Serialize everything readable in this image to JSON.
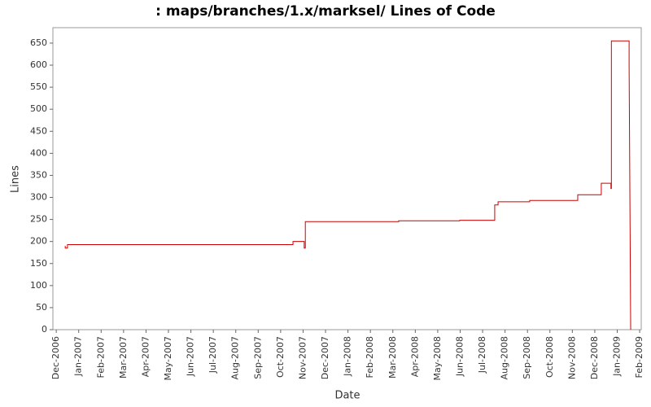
{
  "chart_data": {
    "type": "line",
    "title": ": maps/branches/1.x/marksel/ Lines of Code",
    "x_label": "Date",
    "y_label": "Lines",
    "x": [
      0.4,
      0.4,
      0.5,
      0.5,
      10.55,
      10.55,
      11.05,
      11.05,
      11.1,
      11.1,
      15.26,
      15.26,
      17.98,
      17.98,
      19.54,
      19.54,
      19.69,
      19.69,
      21.1,
      21.1,
      23.24,
      23.24,
      24.29,
      24.29,
      24.72,
      24.72,
      24.74,
      24.74,
      25.53,
      25.53,
      25.6
    ],
    "series": [
      {
        "name": "Lines",
        "color": "#cc0000",
        "values": [
          190,
          185,
          185,
          193,
          193,
          200,
          200,
          185,
          185,
          245,
          245,
          247,
          247,
          248,
          248,
          283,
          283,
          290,
          290,
          293,
          293,
          306,
          306,
          332,
          332,
          320,
          320,
          655,
          655,
          598,
          0
        ]
      }
    ],
    "xlim": [
      -0.15,
      26.07
    ],
    "xticks": [
      {
        "value": 0,
        "label": "Dec-2006"
      },
      {
        "value": 1,
        "label": "Jan-2007"
      },
      {
        "value": 2,
        "label": "Feb-2007"
      },
      {
        "value": 3,
        "label": "Mar-2007"
      },
      {
        "value": 4,
        "label": "Apr-2007"
      },
      {
        "value": 5,
        "label": "May-2007"
      },
      {
        "value": 6,
        "label": "Jun-2007"
      },
      {
        "value": 7,
        "label": "Jul-2007"
      },
      {
        "value": 8,
        "label": "Aug-2007"
      },
      {
        "value": 9,
        "label": "Sep-2007"
      },
      {
        "value": 10,
        "label": "Oct-2007"
      },
      {
        "value": 11,
        "label": "Nov-2007"
      },
      {
        "value": 12,
        "label": "Dec-2007"
      },
      {
        "value": 13,
        "label": "Jan-2008"
      },
      {
        "value": 14,
        "label": "Feb-2008"
      },
      {
        "value": 15,
        "label": "Mar-2008"
      },
      {
        "value": 16,
        "label": "Apr-2008"
      },
      {
        "value": 17,
        "label": "May-2008"
      },
      {
        "value": 18,
        "label": "Jun-2008"
      },
      {
        "value": 19,
        "label": "Jul-2008"
      },
      {
        "value": 20,
        "label": "Aug-2008"
      },
      {
        "value": 21,
        "label": "Sep-2008"
      },
      {
        "value": 22,
        "label": "Oct-2008"
      },
      {
        "value": 23,
        "label": "Nov-2008"
      },
      {
        "value": 24,
        "label": "Dec-2008"
      },
      {
        "value": 25,
        "label": "Jan-2009"
      },
      {
        "value": 26,
        "label": "Feb-2009"
      }
    ],
    "ylim": [
      0,
      685
    ],
    "yticks": [
      0,
      50,
      100,
      150,
      200,
      250,
      300,
      350,
      400,
      450,
      500,
      550,
      600,
      650
    ],
    "grid": false
  }
}
